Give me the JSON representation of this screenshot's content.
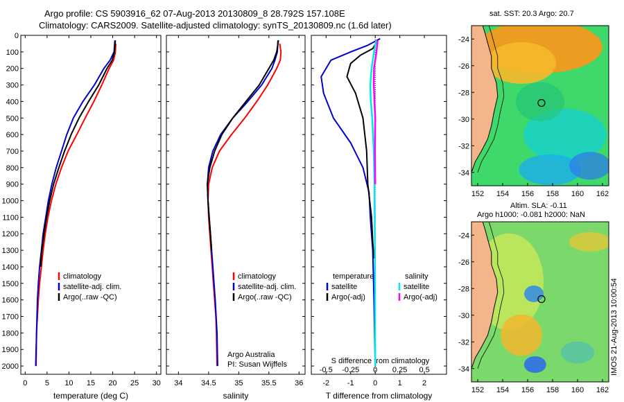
{
  "header": {
    "line1": "Argo profile: CS 5903916_62 07-Aug-2013 20130809_8 28.792S 157.108E",
    "line2": "Climatology: CARS2009. Satellite-adjusted climatology: synTS_20130809.nc (1.6d later)"
  },
  "maps_header": {
    "sst": "sat. SST: 20.3  Argo: 20.7",
    "sla": "Altim. SLA: -0.11",
    "h": "Argo h1000: -0.081  h2000: NaN"
  },
  "side_label": "IMOS 21-Aug-2013 10:00:54",
  "colors": {
    "climatology": "#ff0000",
    "satellite": "#0000cc",
    "argo": "#000000",
    "sat_salinity": "#00e5ee",
    "argo_salinity": "#ff00ff"
  },
  "chart_data": [
    {
      "type": "line",
      "name": "temperature",
      "xlabel": "temperature (deg C)",
      "ylabel": "",
      "xlim": [
        -1,
        31
      ],
      "ylim": [
        2050,
        0
      ],
      "xticks": [
        0,
        5,
        10,
        15,
        20,
        25,
        30
      ],
      "yticks": [
        0,
        100,
        200,
        300,
        400,
        500,
        600,
        700,
        800,
        900,
        1000,
        1100,
        1200,
        1300,
        1400,
        1500,
        1600,
        1700,
        1800,
        1900,
        2000
      ],
      "legend": [
        "climatology",
        "satellite-adj. clim.",
        "Argo(..raw -QC)"
      ],
      "series": [
        {
          "name": "climatology",
          "color": "#ff0000",
          "x": [
            20.7,
            20.6,
            20.2,
            19.2,
            17.5,
            15.7,
            13.7,
            11.8,
            9.8,
            8.3,
            7.0,
            6.0,
            5.2,
            4.6,
            4.1,
            3.7,
            3.3,
            3.0,
            2.8,
            2.6,
            2.5
          ],
          "y": [
            50,
            100,
            150,
            200,
            300,
            400,
            500,
            600,
            700,
            800,
            900,
            1000,
            1100,
            1200,
            1300,
            1400,
            1500,
            1600,
            1700,
            1800,
            2000
          ]
        },
        {
          "name": "satellite-adj. clim.",
          "color": "#0000cc",
          "x": [
            20.5,
            20.3,
            19.4,
            18.0,
            15.8,
            13.2,
            11.0,
            9.5,
            8.3,
            7.1,
            6.1,
            5.3,
            4.7,
            4.1,
            3.7,
            3.3,
            3.0,
            2.8,
            2.6,
            2.4
          ],
          "y": [
            30,
            100,
            150,
            200,
            300,
            400,
            500,
            600,
            700,
            800,
            900,
            1000,
            1100,
            1200,
            1300,
            1400,
            1500,
            1600,
            1800,
            2000
          ]
        },
        {
          "name": "Argo(..raw -QC)",
          "color": "#000000",
          "x": [
            20.6,
            20.4,
            19.9,
            18.7,
            16.8,
            14.5,
            12.3,
            10.5,
            9.0,
            7.7,
            6.5,
            5.6,
            4.9,
            4.3,
            3.8,
            3.5
          ],
          "y": [
            30,
            100,
            150,
            200,
            300,
            400,
            500,
            600,
            700,
            800,
            900,
            1000,
            1100,
            1200,
            1300,
            1400
          ]
        }
      ]
    },
    {
      "type": "line",
      "name": "salinity",
      "xlabel": "salinity",
      "xlim": [
        33.8,
        36.1
      ],
      "ylim": [
        2050,
        0
      ],
      "xticks": [
        34,
        34.5,
        35,
        35.5,
        36
      ],
      "legend": [
        "climatology",
        "satellite-adj. clim.",
        "Argo(..raw -QC)"
      ],
      "annotation": [
        "Argo Australia",
        "PI: Susan Wijffels"
      ],
      "series": [
        {
          "name": "climatology",
          "color": "#ff0000",
          "x": [
            35.68,
            35.7,
            35.69,
            35.63,
            35.48,
            35.3,
            35.1,
            34.88,
            34.68,
            34.56,
            34.5,
            34.49,
            34.5,
            34.52,
            34.54,
            34.56,
            34.58,
            34.6,
            34.62,
            34.63,
            34.64
          ],
          "y": [
            50,
            100,
            150,
            200,
            300,
            400,
            500,
            600,
            700,
            800,
            900,
            1000,
            1100,
            1200,
            1300,
            1400,
            1500,
            1600,
            1700,
            1800,
            2000
          ]
        },
        {
          "name": "satellite-adj. clim.",
          "color": "#0000cc",
          "x": [
            35.65,
            35.64,
            35.6,
            35.55,
            35.38,
            35.15,
            34.9,
            34.7,
            34.57,
            34.5,
            34.48,
            34.49,
            34.51,
            34.53,
            34.55,
            34.57,
            34.59,
            34.61,
            34.64,
            34.65
          ],
          "y": [
            30,
            100,
            150,
            200,
            300,
            400,
            500,
            600,
            700,
            800,
            900,
            1000,
            1100,
            1200,
            1300,
            1400,
            1500,
            1600,
            1800,
            2000
          ]
        },
        {
          "name": "Argo(..raw -QC)",
          "color": "#000000",
          "x": [
            35.66,
            35.63,
            35.58,
            35.5,
            35.34,
            35.12,
            34.9,
            34.72,
            34.6,
            34.52,
            34.48,
            34.49,
            34.51,
            34.53,
            34.55
          ],
          "y": [
            30,
            100,
            150,
            200,
            300,
            400,
            500,
            600,
            700,
            800,
            900,
            1000,
            1100,
            1200,
            1300
          ]
        }
      ]
    },
    {
      "type": "line",
      "name": "difference",
      "xlabel_top": "S difference from climatology",
      "xlabel": "T difference from climatology",
      "xlim": [
        -2.6,
        2.9
      ],
      "ylim": [
        2050,
        0
      ],
      "xticks": [
        -2,
        -1,
        0,
        1,
        2
      ],
      "xticks_top_values": [
        -0.5,
        -0.25,
        0,
        0.25,
        0.5
      ],
      "xticks_top_labels": [
        "-0.5",
        "-0.25",
        "0",
        "0.25",
        "0.5"
      ],
      "legend_t": [
        "temperature",
        "satellite",
        "Argo(-adj)"
      ],
      "legend_s": [
        "salinity",
        "satellite",
        "Argo(-adj)"
      ],
      "series": [
        {
          "name": "satellite",
          "color": "#0000cc",
          "x": [
            0.2,
            -0.3,
            -1.0,
            -1.8,
            -2.2,
            -2.1,
            -1.7,
            -1.0,
            -0.5,
            -0.25,
            -0.2,
            -0.1,
            -0.05,
            0
          ],
          "y": [
            20,
            60,
            100,
            150,
            250,
            350,
            500,
            650,
            800,
            950,
            1100,
            1300,
            1600,
            2000
          ]
        },
        {
          "name": "Argo(-adj)",
          "color": "#000000",
          "x": [
            0.1,
            -0.1,
            -0.6,
            -1.0,
            -1.15,
            -0.8,
            -0.5,
            -0.35,
            -0.3,
            -0.15,
            -0.1,
            -0.05
          ],
          "y": [
            30,
            80,
            120,
            170,
            250,
            350,
            500,
            700,
            900,
            1100,
            1250,
            1350
          ]
        },
        {
          "name": "satellite (salinity)",
          "color": "#00e5ee",
          "x": [
            0.04,
            -0.05,
            -0.15,
            -0.2,
            -0.18,
            -0.12,
            -0.06,
            -0.03,
            -0.02,
            -0.01,
            0
          ],
          "y": [
            30,
            100,
            200,
            300,
            400,
            500,
            700,
            900,
            1100,
            1400,
            2000
          ]
        },
        {
          "name": "Argo(-adj) (salinity)",
          "color": "#ff00ff",
          "x": [
            0.1,
            0.05,
            -0.05,
            -0.06,
            -0.03,
            0.0,
            -0.01,
            0.0
          ],
          "y": [
            30,
            100,
            200,
            300,
            400,
            500,
            700,
            900
          ]
        }
      ]
    }
  ],
  "maps": [
    {
      "name": "sst-map",
      "xlim": [
        151.5,
        162.5
      ],
      "ylim": [
        -35,
        -23
      ],
      "xticks": [
        152,
        154,
        156,
        158,
        160,
        162
      ],
      "yticks": [
        -24,
        -26,
        -28,
        -30,
        -32,
        -34
      ],
      "argo_position": {
        "lon": 157.108,
        "lat": -28.792
      }
    },
    {
      "name": "sla-map",
      "xlim": [
        151.5,
        162.5
      ],
      "ylim": [
        -35,
        -23
      ],
      "xticks": [
        152,
        154,
        156,
        158,
        160,
        162
      ],
      "yticks": [
        -24,
        -26,
        -28,
        -30,
        -32,
        -34
      ],
      "argo_position": {
        "lon": 157.108,
        "lat": -28.792
      }
    }
  ]
}
